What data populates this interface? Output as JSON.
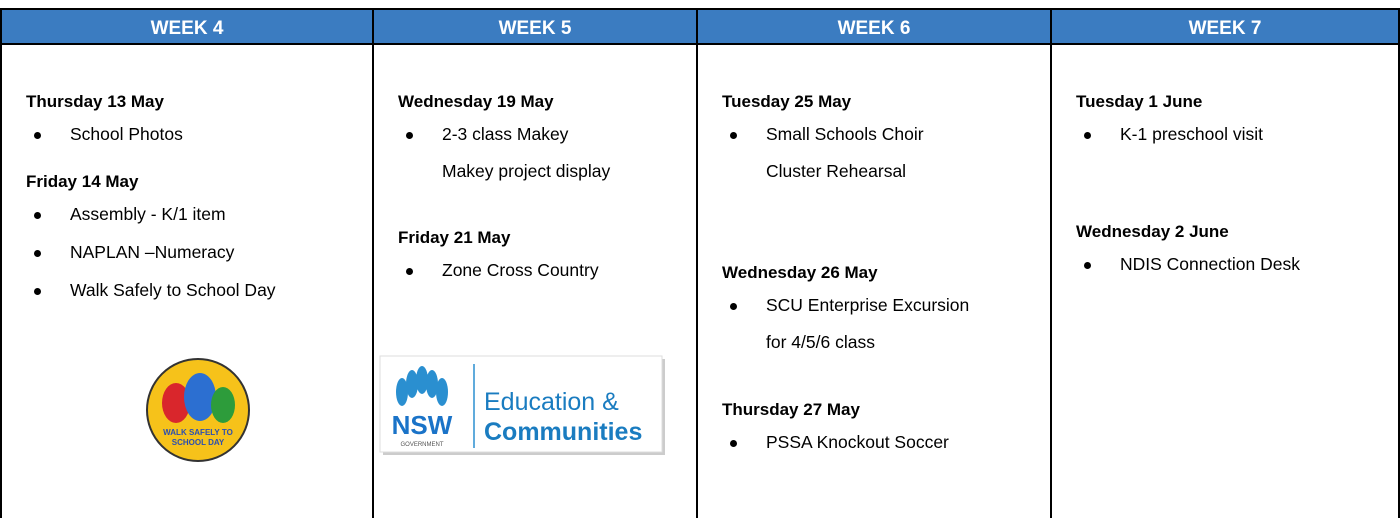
{
  "table": {
    "headers": [
      "WEEK 4",
      "WEEK 5",
      "WEEK 6",
      "WEEK 7"
    ],
    "columns": [
      {
        "days": [
          {
            "date": "Thursday 13 May",
            "items": [
              [
                "School Photos"
              ]
            ]
          },
          {
            "date": "Friday 14 May",
            "items": [
              [
                "Assembly - K/1 item"
              ],
              [
                "NAPLAN –Numeracy"
              ],
              [
                "Walk Safely to School Day"
              ]
            ]
          }
        ],
        "logo": {
          "text": [
            "WALK SAFELY TO",
            "SCHOOL DAY"
          ]
        }
      },
      {
        "days": [
          {
            "date": "Wednesday 19 May",
            "items": [
              [
                "2-3 class Makey",
                "Makey project display"
              ]
            ]
          },
          {
            "date": "Friday 21 May",
            "items": [
              [
                "Zone Cross Country"
              ]
            ]
          }
        ],
        "logo": {
          "text": [
            "NSW",
            "GOVERNMENT",
            "Education &",
            "Communities"
          ]
        }
      },
      {
        "days": [
          {
            "date": "Tuesday 25 May",
            "items": [
              [
                "Small Schools Choir",
                "Cluster Rehearsal"
              ]
            ]
          },
          {
            "date": "Wednesday 26 May",
            "items": [
              [
                "SCU Enterprise Excursion",
                "for 4/5/6 class"
              ]
            ]
          },
          {
            "date": "Thursday 27 May",
            "items": [
              [
                "PSSA Knockout Soccer"
              ]
            ]
          }
        ]
      },
      {
        "days": [
          {
            "date": "Tuesday 1 June",
            "items": [
              [
                "K-1 preschool visit"
              ]
            ]
          },
          {
            "date": "Wednesday 2 June",
            "items": [
              [
                "NDIS Connection Desk"
              ]
            ]
          }
        ]
      }
    ]
  }
}
